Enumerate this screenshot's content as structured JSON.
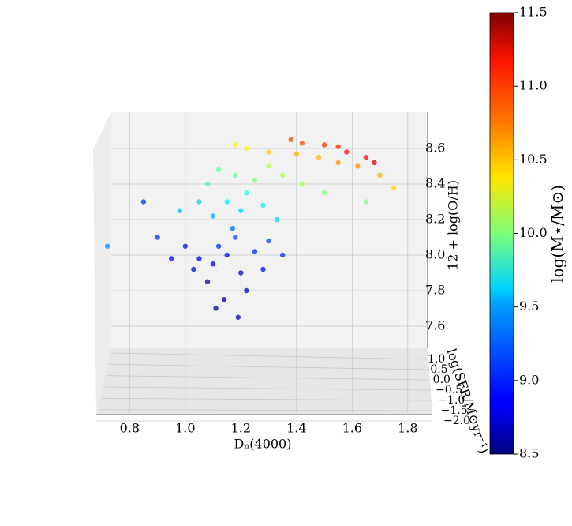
{
  "chart_data": {
    "type": "scatter3d",
    "xlabel": "Dₙ(4000)",
    "ylabel": "12 + log(O/H)",
    "zlabel": "log(SFR/M⊙yr⁻¹)",
    "colorbar_label": "log(M⋆/M⊙)",
    "colormap": "jet",
    "xlim": [
      0.68,
      1.88
    ],
    "xticks": [
      0.8,
      {
        "value": 1,
        "label": "1.0"
      },
      1.2,
      1.4,
      1.6,
      1.8
    ],
    "ylim": [
      7.5,
      8.7
    ],
    "yticks": [
      {
        "value": 7.6,
        "label": "7.6"
      },
      {
        "value": 7.8,
        "label": "7.8"
      },
      {
        "value": 8,
        "label": "8.0"
      },
      {
        "value": 8.2,
        "label": "8.2"
      },
      {
        "value": 8.4,
        "label": "8.4"
      },
      {
        "value": 8.6,
        "label": "8.6"
      }
    ],
    "zlim": [
      -2.1,
      1.1
    ],
    "zticks": [
      {
        "value": -2,
        "label": "−2.0"
      },
      {
        "value": -1.5,
        "label": "−1.5"
      },
      {
        "value": -1,
        "label": "−1.0"
      },
      {
        "value": -0.5,
        "label": "−0.5"
      },
      {
        "value": 0,
        "label": "0.0"
      },
      {
        "value": 0.5,
        "label": "0.5"
      },
      {
        "value": 1,
        "label": "1.0"
      }
    ],
    "clim": [
      8.5,
      11.5
    ],
    "cticks": [
      8.5,
      {
        "value": 9,
        "label": "9.0"
      },
      9.5,
      {
        "value": 10,
        "label": "10.0"
      },
      10.5,
      {
        "value": 11,
        "label": "11.0"
      },
      11.5
    ],
    "x": [
      1.1,
      1.15,
      1.2,
      1.12,
      1.18,
      1.05,
      1.25,
      1.08,
      1.22,
      1.14,
      1.0,
      1.3,
      1.17,
      1.03,
      0.95,
      1.28,
      1.11,
      1.19,
      0.9,
      1.35,
      1.2,
      1.15,
      1.28,
      1.1,
      1.33,
      1.05,
      1.22,
      0.98,
      1.25,
      1.18,
      1.35,
      1.42,
      1.12,
      1.3,
      1.5,
      1.65,
      1.08,
      1.3,
      1.22,
      1.4,
      1.48,
      1.55,
      1.18,
      1.62,
      1.7,
      1.75,
      1.42,
      1.5,
      1.58,
      1.65,
      1.55,
      1.68,
      1.38,
      0.72,
      0.85
    ],
    "y": [
      7.95,
      8.0,
      7.9,
      8.05,
      8.1,
      7.98,
      8.02,
      7.85,
      7.8,
      7.75,
      8.05,
      8.08,
      8.15,
      7.92,
      7.98,
      7.92,
      7.7,
      7.65,
      8.1,
      8.0,
      8.25,
      8.3,
      8.28,
      8.22,
      8.2,
      8.3,
      8.35,
      8.25,
      8.42,
      8.45,
      8.45,
      8.4,
      8.48,
      8.5,
      8.35,
      8.3,
      8.4,
      8.58,
      8.6,
      8.57,
      8.55,
      8.52,
      8.62,
      8.5,
      8.45,
      8.38,
      8.63,
      8.62,
      8.58,
      8.55,
      8.61,
      8.52,
      8.65,
      8.05,
      8.3
    ],
    "z": [
      -0.5,
      -0.3,
      -0.6,
      -0.2,
      -0.1,
      -0.4,
      -0.3,
      -0.7,
      -0.8,
      -0.9,
      -0.2,
      -0.4,
      0.0,
      -0.5,
      -0.3,
      -0.6,
      -1.0,
      -1.1,
      -0.1,
      -0.5,
      0.1,
      0.2,
      0.0,
      0.1,
      -0.1,
      0.2,
      0.2,
      0.1,
      0.3,
      0.3,
      0.2,
      0.1,
      0.4,
      0.3,
      0.0,
      -0.5,
      0.3,
      0.4,
      0.5,
      0.3,
      0.2,
      0.0,
      0.5,
      -0.2,
      -0.4,
      -0.6,
      0.3,
      0.2,
      0.0,
      -0.2,
      0.1,
      -0.3,
      0.4,
      -1.5,
      0.5
    ],
    "c": [
      8.8,
      8.9,
      8.7,
      9.0,
      9.1,
      8.8,
      9.0,
      8.6,
      8.7,
      8.6,
      8.9,
      9.1,
      9.2,
      8.8,
      8.9,
      8.9,
      8.6,
      8.7,
      9.0,
      9.0,
      9.5,
      9.6,
      9.6,
      9.4,
      9.5,
      9.5,
      9.7,
      9.4,
      10.0,
      9.9,
      10.1,
      10.1,
      9.9,
      10.2,
      10.0,
      10.0,
      9.8,
      10.5,
      10.4,
      10.6,
      10.6,
      10.7,
      10.4,
      10.7,
      10.6,
      10.5,
      10.9,
      11.0,
      11.1,
      11.1,
      11.0,
      11.2,
      10.9,
      9.3,
      9.0
    ]
  }
}
